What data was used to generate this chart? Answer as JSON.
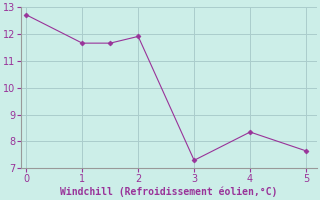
{
  "x": [
    0,
    1,
    1.5,
    2,
    3,
    4,
    5
  ],
  "y": [
    12.7,
    11.65,
    11.65,
    11.9,
    7.3,
    8.35,
    7.65
  ],
  "line_color": "#993399",
  "marker": "D",
  "marker_size": 2.5,
  "bg_color": "#cceee8",
  "grid_color": "#aacccc",
  "spine_color": "#999999",
  "xlabel": "Windchill (Refroidissement éolien,°C)",
  "xlabel_color": "#993399",
  "tick_color": "#993399",
  "tick_label_size": 7,
  "xlabel_size": 7,
  "xlim": [
    -0.1,
    5.2
  ],
  "ylim": [
    7,
    13
  ],
  "yticks": [
    7,
    8,
    9,
    10,
    11,
    12,
    13
  ],
  "xticks": [
    0,
    1,
    2,
    3,
    4,
    5
  ]
}
